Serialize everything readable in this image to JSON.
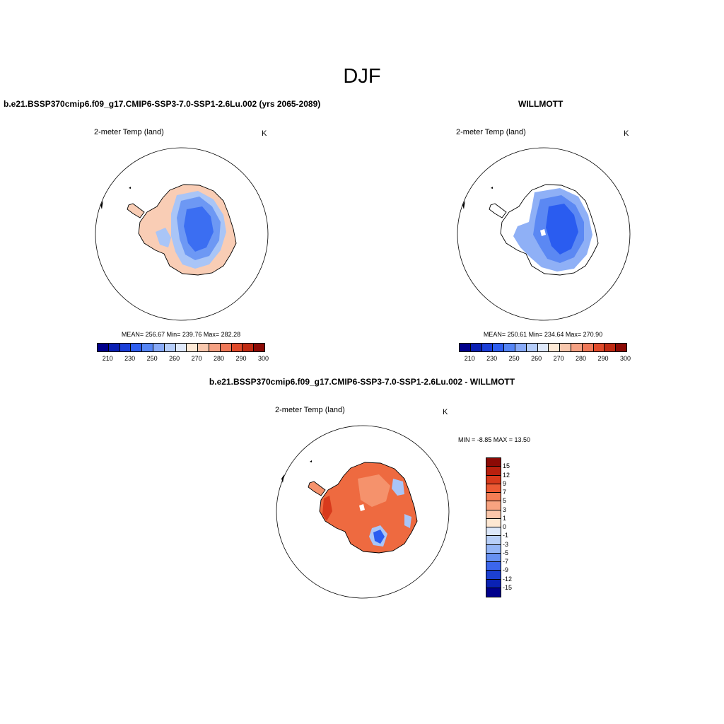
{
  "figure": {
    "season": "DJF"
  },
  "panels": {
    "model": {
      "title": "b.e21.BSSP370cmip6.f09_g17.CMIP6-SSP3-7.0-SSP1-2.6Lu.002 (yrs 2065-2089)",
      "field_label": "2-meter Temp (land)",
      "units": "K",
      "stats": "MEAN= 256.67  Min= 239.76  Max= 282.28"
    },
    "obs": {
      "title": "WILLMOTT",
      "field_label": "2-meter Temp (land)",
      "units": "K",
      "stats": "MEAN= 250.61  Min= 234.64  Max= 270.90"
    },
    "diff": {
      "title": "b.e21.BSSP370cmip6.f09_g17.CMIP6-SSP3-7.0-SSP1-2.6Lu.002 - WILLMOTT",
      "field_label": "2-meter Temp (land)",
      "units": "K",
      "minmax": "MIN =  -8.85 MAX =  13.50"
    }
  },
  "abs_colorbar": {
    "tick_labels": [
      "210",
      "230",
      "250",
      "260",
      "270",
      "280",
      "290",
      "300"
    ],
    "colors": [
      "#00008c",
      "#0a1fb4",
      "#1a3ed8",
      "#2e5ef0",
      "#5585f5",
      "#88aaf8",
      "#b5cdfa",
      "#dfe9fb",
      "#fde9d6",
      "#f9c8ae",
      "#f5a183",
      "#f07858",
      "#e04a2a",
      "#c02a12",
      "#8c0a05"
    ]
  },
  "diff_colorbar": {
    "tick_labels": [
      "15",
      "12",
      "9",
      "7",
      "5",
      "3",
      "1",
      "0",
      "-1",
      "-3",
      "-5",
      "-7",
      "-9",
      "-12",
      "-15"
    ],
    "colors": [
      "#8c0a05",
      "#b8200e",
      "#d83a1c",
      "#ec5a34",
      "#f47d55",
      "#f8a380",
      "#fbc7aa",
      "#fde7d2",
      "#dde8fa",
      "#b8cff8",
      "#94b5f6",
      "#6690f2",
      "#3c66ec",
      "#1c40d2",
      "#0a22b4",
      "#00008c"
    ]
  },
  "map_colors": {
    "model_interior": "#3b6ef2",
    "model_mid": "#6d98f4",
    "model_edge": "#a9c5f7",
    "model_coast": "#f9cdb5",
    "obs_interior": "#2a5cf0",
    "obs_mid": "#5b88f3",
    "obs_edge": "#8fb0f6",
    "diff_main": "#ee6a40",
    "diff_warm": "#f5926c",
    "diff_peak": "#d83a1c",
    "diff_cold": "#2a5cf0",
    "diff_cool": "#a9c5f7"
  }
}
